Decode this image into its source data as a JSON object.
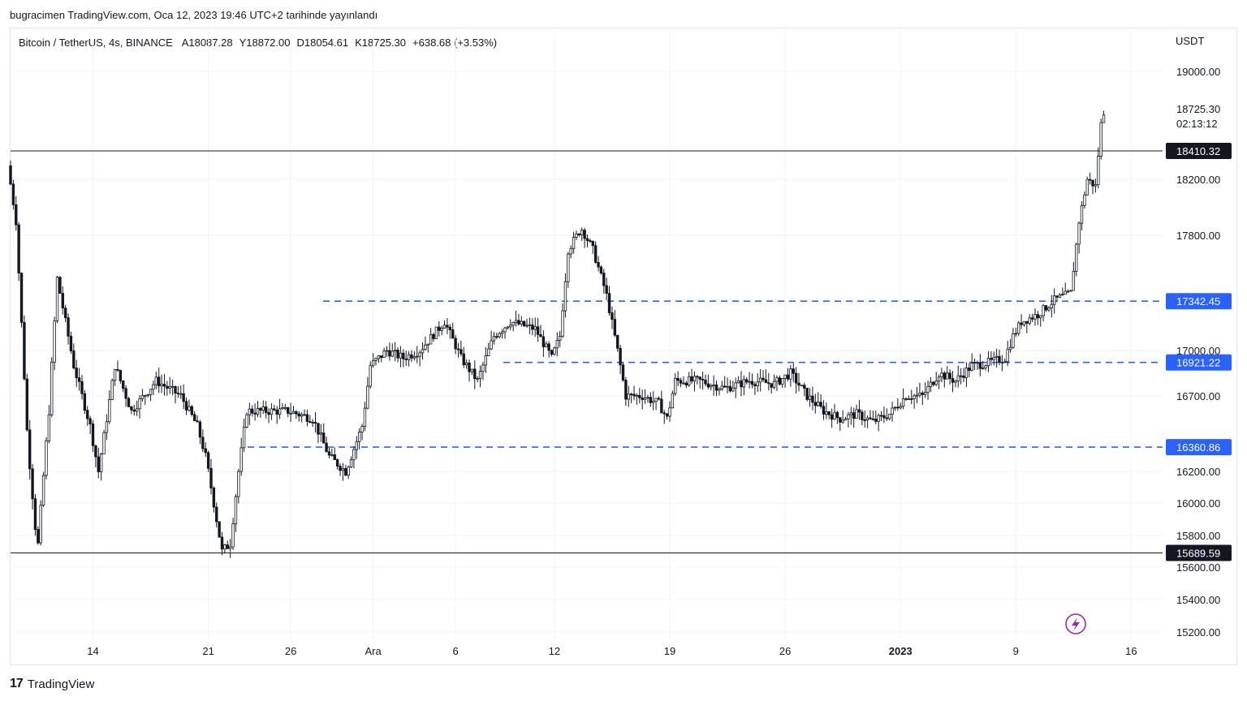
{
  "header": {
    "publish_text": "bugracimen TradingView.com, Oca 12, 2023 19:46 UTC+2 tarihinde yayınlandı"
  },
  "legend": {
    "symbol": "Bitcoin / TetherUS, 4s, BINANCE",
    "open": "A18087.28",
    "high": "Y18872.00",
    "low": "D18054.61",
    "close": "K18725.30",
    "change": "+638.68 (+3.53%)"
  },
  "footer": {
    "brand": "TradingView",
    "logo": "17"
  },
  "colors": {
    "candle": "#131722",
    "dashed_line": "#2962ff",
    "solid_line": "#131722",
    "grid": "#f0f3fa",
    "tag_blue": "#2962ff",
    "tag_black": "#131722",
    "lightning": "#9c27b0"
  },
  "lightning_icon": "lightning-icon",
  "chart_data": {
    "type": "candlestick",
    "currency": "USDT",
    "ylim": [
      15100,
      19200
    ],
    "y_ticks": [
      "19000.00",
      "18200.00",
      "17800.00",
      "17000.00",
      "16700.00",
      "16200.00",
      "16000.00",
      "15800.00",
      "15600.00",
      "15400.00",
      "15200.00"
    ],
    "y_tick_values": [
      19000,
      18200,
      17800,
      17000,
      16700,
      16200,
      16000,
      15800,
      15600,
      15400,
      15200
    ],
    "x_ticks": [
      "14",
      "21",
      "26",
      "Ara",
      "6",
      "12",
      "19",
      "26",
      "2023",
      "9",
      "16"
    ],
    "x_tick_days": [
      5,
      12,
      17,
      22,
      27,
      33,
      40,
      47,
      54,
      61,
      68
    ],
    "x_range_days": [
      0,
      71.5
    ],
    "last_price": "18725.30",
    "countdown": "02:13:12",
    "levels": [
      {
        "value": 18410.32,
        "label": "18410.32",
        "style": "solid"
      },
      {
        "value": 17342.45,
        "label": "17342.45",
        "style": "dashed"
      },
      {
        "value": 16921.22,
        "label": "16921.22",
        "style": "dashed"
      },
      {
        "value": 16360.86,
        "label": "16360.86",
        "style": "dashed"
      },
      {
        "value": 15689.59,
        "label": "15689.59",
        "style": "solid"
      }
    ],
    "price_path": [
      [
        0,
        18300
      ],
      [
        0.5,
        17900
      ],
      [
        1.2,
        16400
      ],
      [
        1.8,
        15700
      ],
      [
        2.5,
        16600
      ],
      [
        3,
        17500
      ],
      [
        4,
        16900
      ],
      [
        5,
        16500
      ],
      [
        5.5,
        16200
      ],
      [
        6.5,
        16900
      ],
      [
        7.5,
        16600
      ],
      [
        9,
        16800
      ],
      [
        10.5,
        16700
      ],
      [
        11.5,
        16500
      ],
      [
        12,
        16300
      ],
      [
        12.5,
        16000
      ],
      [
        13,
        15700
      ],
      [
        13.5,
        15750
      ],
      [
        14,
        16200
      ],
      [
        14.5,
        16600
      ],
      [
        15.5,
        16600
      ],
      [
        17,
        16600
      ],
      [
        18.5,
        16550
      ],
      [
        19.5,
        16300
      ],
      [
        20.5,
        16200
      ],
      [
        21.5,
        16500
      ],
      [
        22,
        16900
      ],
      [
        23,
        17000
      ],
      [
        24,
        16950
      ],
      [
        25,
        17000
      ],
      [
        26.5,
        17200
      ],
      [
        27.5,
        16950
      ],
      [
        28.5,
        16800
      ],
      [
        29.5,
        17100
      ],
      [
        30.5,
        17200
      ],
      [
        32,
        17150
      ],
      [
        33,
        16950
      ],
      [
        33.5,
        17100
      ],
      [
        34,
        17700
      ],
      [
        34.8,
        17850
      ],
      [
        35.5,
        17700
      ],
      [
        36.3,
        17400
      ],
      [
        37,
        17000
      ],
      [
        37.5,
        16700
      ],
      [
        38.5,
        16700
      ],
      [
        39.5,
        16650
      ],
      [
        40,
        16550
      ],
      [
        40.5,
        16800
      ],
      [
        42,
        16800
      ],
      [
        43.5,
        16750
      ],
      [
        45,
        16800
      ],
      [
        46.5,
        16780
      ],
      [
        47.5,
        16850
      ],
      [
        48.5,
        16700
      ],
      [
        49.5,
        16600
      ],
      [
        50.5,
        16550
      ],
      [
        51.5,
        16580
      ],
      [
        52.5,
        16530
      ],
      [
        53.5,
        16580
      ],
      [
        54.5,
        16700
      ],
      [
        55.5,
        16700
      ],
      [
        56.5,
        16850
      ],
      [
        57.5,
        16800
      ],
      [
        58.5,
        16900
      ],
      [
        59.5,
        16920
      ],
      [
        60.5,
        16950
      ],
      [
        61,
        17100
      ],
      [
        61.5,
        17200
      ],
      [
        62.5,
        17250
      ],
      [
        63.5,
        17350
      ],
      [
        64.5,
        17400
      ],
      [
        65,
        17900
      ],
      [
        65.5,
        18200
      ],
      [
        66,
        18150
      ],
      [
        66.4,
        18700
      ]
    ]
  }
}
